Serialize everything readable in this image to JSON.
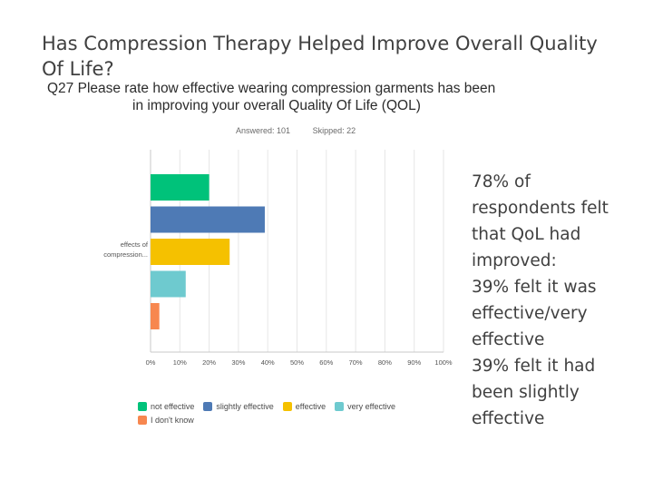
{
  "slide": {
    "title": "Has Compression Therapy Helped Improve Overall Quality Of Life?"
  },
  "question": {
    "line1": "Q27 Please rate how effective wearing compression garments has been",
    "line2": "in improving your overall Quality Of Life (QOL)",
    "answered": "Answered: 101",
    "skipped": "Skipped: 22"
  },
  "chart_data": {
    "type": "bar",
    "orientation": "horizontal",
    "category_label": [
      "effects of",
      "compression..."
    ],
    "series": [
      {
        "name": "not effective",
        "value": 20,
        "color": "#00c27a"
      },
      {
        "name": "slightly effective",
        "value": 39,
        "color": "#4e7ab5"
      },
      {
        "name": "effective",
        "value": 27,
        "color": "#f5c100"
      },
      {
        "name": "very effective",
        "value": 12,
        "color": "#6ecacf"
      },
      {
        "name": "I don't know",
        "value": 3,
        "color": "#f7874f"
      }
    ],
    "xticks": [
      "0%",
      "10%",
      "20%",
      "30%",
      "40%",
      "50%",
      "60%",
      "70%",
      "80%",
      "90%",
      "100%"
    ],
    "xlim": [
      0,
      100
    ],
    "grid": true,
    "legend_placement": "bottom"
  },
  "summary": {
    "lines": [
      "78% of",
      "respondents felt",
      "that QoL had",
      "improved:",
      "39%  felt it was",
      "effective/very",
      "effective",
      "39% felt it had",
      "been slightly",
      "effective"
    ]
  }
}
